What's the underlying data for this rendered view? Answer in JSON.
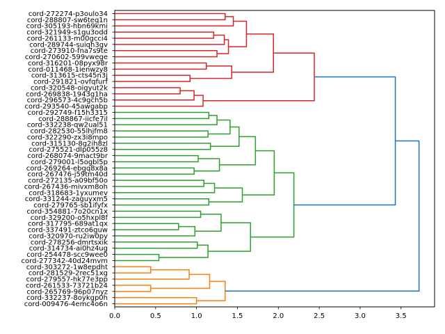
{
  "chart_data": {
    "type": "dendrogram",
    "orientation": "right",
    "xlabel": "",
    "ylabel": "",
    "xlim": [
      0,
      3.91
    ],
    "xticks": [
      "0.0",
      "0.5",
      "1.0",
      "1.5",
      "2.0",
      "2.5",
      "3.0",
      "3.5"
    ],
    "xtick_values": [
      0,
      0.5,
      1.0,
      1.5,
      2.0,
      2.5,
      3.0,
      3.5
    ],
    "colors": {
      "red": "#d62728",
      "green": "#2ca02c",
      "orange": "#ff7f0e",
      "above": "#1f77b4"
    },
    "leaves": [
      "cord-272274-p3oulo34",
      "cord-288807-sw6teq1n",
      "cord-305193-hbn69kmi",
      "cord-321949-s1gu3odd",
      "cord-261133-m00gcci4",
      "cord-289744-suiqh3gv",
      "cord-273910-fna7s9te",
      "cord-270602-599vwege",
      "cord-316201-08pyx98r",
      "cord-011468-1ienwzy8",
      "cord-313615-cts45n3j",
      "cord-291821-ovfqfurf",
      "cord-320548-oigyut2k",
      "cord-269838-1943g1ha",
      "cord-296573-4c9gch5b",
      "cord-293540-45awgabp",
      "cord-292749-f15h3315",
      "cord-288867-iicfe7il",
      "cord-332238-qw2ual51",
      "cord-282530-55lhjfm8",
      "cord-322290-zx3i8mpo",
      "cord-315130-8g2ih8zl",
      "cord-275521-dlp055z8",
      "cord-268074-9mact9br",
      "cord-279001-l5ogbl5p",
      "cord-269264-ebgq8x8a",
      "cord-267476-j59tm40d",
      "cord-272135-a09bf50o",
      "cord-267436-mivxm8oh",
      "cord-318683-1yxumev",
      "cord-331244-zaguyxm5",
      "cord-279765-sb1ifyfx",
      "cord-354881-7o20cn1x",
      "cord-329200-o5hxpl8f",
      "cord-317795-689at1qx",
      "cord-337491-ztco6guw",
      "cord-320970-ru2iw0py",
      "cord-278256-dmrtsxik",
      "cord-314734-ai0hz4ug",
      "cord-254478-scc9wee0",
      "cord-277342-40d24mvm",
      "cord-303272-1w8epdht",
      "cord-281529-2rec51xg",
      "cord-279557-hk77e3pp",
      "cord-261533-73721b24",
      "cord-265769-96p07nyz",
      "cord-332237-8oykgp0h",
      "cord-009476-4emc4o6n"
    ],
    "tree": {
      "h": 3.72,
      "color": "above",
      "c": [
        {
          "h": 3.43,
          "color": "above",
          "c": [
            {
              "h": 2.44,
              "color": "red",
              "c": [
                {
                  "h": 1.94,
                  "c": [
                    {
                      "h": 1.61,
                      "c": [
                        {
                          "h": 1.45,
                          "c": [
                            {
                              "h": 1.35,
                              "c": [
                                0,
                                1
                              ]
                            },
                            2
                          ]
                        },
                        {
                          "h": 1.39,
                          "c": [
                            {
                              "h": 1.34,
                              "c": [
                                {
                                  "h": 1.21,
                                  "c": [
                                    3,
                                    4
                                  ]
                                },
                                5
                              ]
                            },
                            {
                              "h": 1.25,
                              "c": [
                                6,
                                7
                              ]
                            }
                          ]
                        }
                      ]
                    },
                    {
                      "h": 1.43,
                      "c": [
                        {
                          "h": 1.12,
                          "c": [
                            8,
                            9
                          ]
                        },
                        {
                          "h": 0.92,
                          "c": [
                            10,
                            11
                          ]
                        }
                      ]
                    }
                  ]
                },
                {
                  "h": 1.08,
                  "c": [
                    {
                      "h": 0.97,
                      "c": [
                        {
                          "h": 0.8,
                          "c": [
                            12,
                            13
                          ]
                        },
                        14
                      ]
                    },
                    15
                  ]
                }
              ]
            },
            {
              "h": 2.19,
              "color": "green",
              "c": [
                {
                  "h": 1.95,
                  "c": [
                    {
                      "h": 1.72,
                      "c": [
                        {
                          "h": 1.52,
                          "c": [
                            {
                              "h": 1.41,
                              "c": [
                                {
                                  "h": 1.25,
                                  "c": [
                                    {
                                      "h": 1.15,
                                      "c": [
                                        16,
                                        17
                                      ]
                                    },
                                    18
                                  ]
                                },
                                {
                                  "h": 1.14,
                                  "c": [
                                    19,
                                    20
                                  ]
                                }
                              ]
                            },
                            {
                              "h": 1.17,
                              "c": [
                                21,
                                22
                              ]
                            }
                          ]
                        },
                        {
                          "h": 1.28,
                          "c": [
                            {
                              "h": 1.02,
                              "c": [
                                23,
                                24
                              ]
                            },
                            {
                              "h": 0.97,
                              "c": [
                                25,
                                26
                              ]
                            }
                          ]
                        }
                      ]
                    },
                    {
                      "h": 1.56,
                      "c": [
                        {
                          "h": 1.22,
                          "c": [
                            {
                              "h": 1.09,
                              "c": [
                                27,
                                28
                              ]
                            },
                            29
                          ]
                        },
                        {
                          "h": 1.15,
                          "c": [
                            30,
                            31
                          ]
                        }
                      ]
                    }
                  ]
                },
                {
                  "h": 1.66,
                  "c": [
                    {
                      "h": 1.3,
                      "c": [
                        {
                          "h": 1.05,
                          "c": [
                            32,
                            33
                          ]
                        },
                        {
                          "h": 0.98,
                          "c": [
                            {
                              "h": 0.78,
                              "c": [
                                34,
                                35
                              ]
                            },
                            36
                          ]
                        }
                      ]
                    },
                    {
                      "h": 1.14,
                      "c": [
                        {
                          "h": 1.01,
                          "c": [
                            37,
                            38
                          ]
                        },
                        {
                          "h": 0.54,
                          "c": [
                            39,
                            40
                          ]
                        }
                      ]
                    }
                  ]
                }
              ]
            }
          ]
        },
        {
          "h": 1.35,
          "color": "orange",
          "c": [
            {
              "h": 1.16,
              "c": [
                {
                  "h": 0.91,
                  "c": [
                    {
                      "h": 0.44,
                      "c": [
                        41,
                        42
                      ]
                    },
                    43
                  ]
                },
                {
                  "h": 0.44,
                  "c": [
                    44,
                    45
                  ]
                }
              ]
            },
            {
              "h": 1.0,
              "c": [
                46,
                47
              ]
            }
          ]
        }
      ]
    }
  }
}
